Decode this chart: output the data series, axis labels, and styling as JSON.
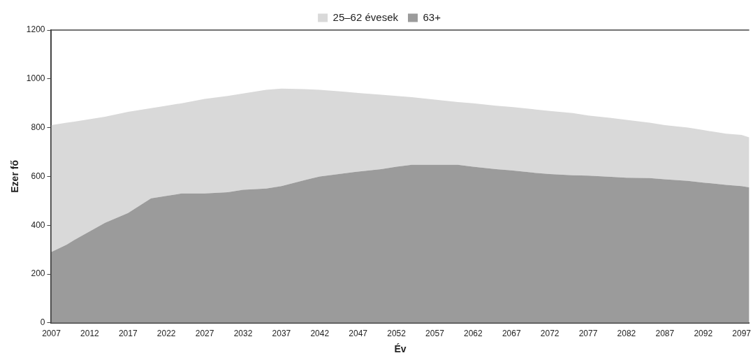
{
  "chart_data": {
    "type": "area",
    "xlabel": "Év",
    "ylabel": "Ezer fő",
    "stacked": true,
    "legend": "top",
    "grid": false,
    "marker": "none",
    "x": [
      2007,
      2009,
      2010,
      2012,
      2014,
      2017,
      2019,
      2020,
      2022,
      2024,
      2027,
      2030,
      2032,
      2035,
      2037,
      2040,
      2042,
      2045,
      2047,
      2050,
      2052,
      2054,
      2057,
      2060,
      2062,
      2065,
      2067,
      2070,
      2072,
      2075,
      2077,
      2080,
      2082,
      2085,
      2087,
      2090,
      2092,
      2095,
      2097,
      2098
    ],
    "series": [
      {
        "name": "63+",
        "color": "#9b9b9b",
        "values": [
          290,
          320,
          340,
          375,
          410,
          450,
          490,
          510,
          520,
          530,
          530,
          535,
          545,
          550,
          560,
          585,
          600,
          612,
          620,
          630,
          640,
          648,
          648,
          648,
          640,
          630,
          625,
          615,
          610,
          605,
          603,
          598,
          595,
          593,
          588,
          582,
          575,
          565,
          560,
          555
        ]
      },
      {
        "name": "25–62 évesek",
        "color": "#d9d9d9",
        "values": [
          520,
          500,
          485,
          460,
          435,
          415,
          385,
          370,
          370,
          370,
          388,
          395,
          395,
          405,
          400,
          373,
          355,
          336,
          322,
          305,
          290,
          277,
          267,
          257,
          260,
          260,
          260,
          260,
          258,
          255,
          247,
          242,
          237,
          227,
          222,
          218,
          215,
          210,
          210,
          205
        ]
      }
    ],
    "xlim": [
      2007,
      2098
    ],
    "xticks": [
      2007,
      2012,
      2017,
      2022,
      2027,
      2032,
      2037,
      2042,
      2047,
      2052,
      2057,
      2062,
      2067,
      2072,
      2077,
      2082,
      2087,
      2092,
      2097
    ],
    "ylim": [
      0,
      1200
    ],
    "yticks": [
      0,
      200,
      400,
      600,
      800,
      1000,
      1200
    ]
  }
}
